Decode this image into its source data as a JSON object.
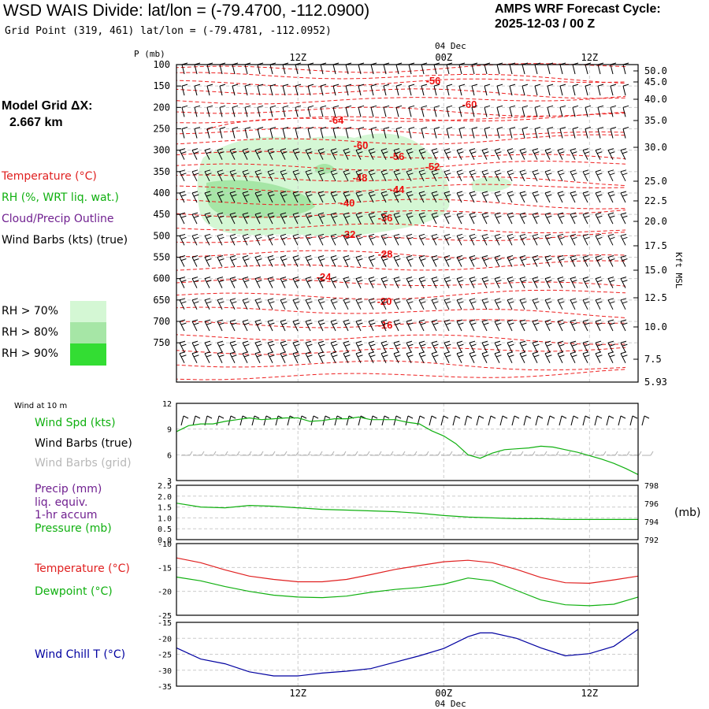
{
  "header": {
    "title": "WSD WAIS Divide:  lat/lon = (-79.4700, -112.0900)",
    "subtitle": "Grid Point (319, 461) lat/lon = (-79.4781, -112.0952)",
    "cycle_line1": "AMPS WRF Forecast Cycle:",
    "cycle_line2": "2025-12-03 / 00  Z"
  },
  "left_legend": {
    "model_grid_label": "Model Grid ΔX:",
    "model_grid_value": "2.667 km",
    "temperature": "Temperature (°C)",
    "rh": "RH (%, WRT liq. wat.)",
    "cloud": "Cloud/Precip Outline",
    "wind": "Wind Barbs (kts) (true)",
    "rh70": "RH > 70%",
    "rh80": "RH > 80%",
    "rh90": "RH > 90%",
    "wind10m": "Wind at 10 m",
    "windspd": "Wind Spd (kts)",
    "windbarbs_true": "Wind Barbs (true)",
    "windbarbs_grid": "Wind Barbs (grid)",
    "precip": "Precip (mm)",
    "liq": "liq. equiv.",
    "accum": "1-hr accum",
    "pressure": "Pressure (mb)",
    "temp2": "Temperature (°C)",
    "dewpoint": "Dewpoint (°C)",
    "windchill": "Wind Chill T (°C)"
  },
  "axis_labels": {
    "p_mb": "P (mb)",
    "kft_msl": "Kft MSL",
    "mb_right": "(mb)",
    "date_top": "04 Dec",
    "date_bottom": "04 Dec"
  },
  "colors": {
    "temperature": "#ff0000",
    "rh_green": "#00c000",
    "cloud": "#702090",
    "wind_chill": "#0000a0",
    "grid_barbs": "#b0b0b0",
    "rh70": "#d4f7d4",
    "rh80": "#a6e6a6",
    "rh90": "#33dd33"
  },
  "chart_data": [
    {
      "type": "line",
      "panel": "cross-section",
      "title": "",
      "ylabel": "P (mb)",
      "y_ticks": [
        100,
        150,
        200,
        250,
        300,
        350,
        400,
        450,
        500,
        550,
        600,
        650,
        700,
        750
      ],
      "right_axis_label": "Kft MSL",
      "right_ticks": [
        "50.0",
        "45.0",
        "40.0",
        "35.0",
        "30.0",
        "25.0",
        "22.5",
        "20.0",
        "17.5",
        "15.0",
        "12.5",
        "10.0",
        "7.5",
        "5.93"
      ],
      "x_ticks_top": [
        "12Z",
        "00Z",
        "12Z"
      ],
      "x_date": "04 Dec",
      "temperature_contour_labels": [
        "-56",
        "-60",
        "-64",
        "-60",
        "-56",
        "-52",
        "-48",
        "-44",
        "-40",
        "-36",
        "-32",
        "-28",
        "-24",
        "-20",
        "-16"
      ],
      "rh_legend": [
        "RH > 70%",
        "RH > 80%",
        "RH > 90%"
      ]
    },
    {
      "type": "line",
      "panel": "wind-10m",
      "title": "Wind at 10 m",
      "ylim": [
        3,
        12
      ],
      "y_ticks": [
        "12",
        "9",
        "6",
        "3"
      ],
      "series": [
        {
          "name": "Wind Spd (kts)",
          "x": [
            0,
            1,
            2,
            3,
            4,
            5,
            6,
            7,
            8,
            9,
            10,
            11,
            12,
            13,
            14,
            15,
            16,
            17,
            18,
            19,
            20,
            21,
            22,
            23,
            24,
            25,
            26,
            27,
            28,
            29,
            30,
            31,
            32,
            33,
            34,
            35,
            36,
            37,
            38
          ],
          "values": [
            8.7,
            9.4,
            9.6,
            9.6,
            9.9,
            10.1,
            10.3,
            10.1,
            10.2,
            10.3,
            10.3,
            9.9,
            10.0,
            10.2,
            10.2,
            10.4,
            10.1,
            10.1,
            10.1,
            9.8,
            9.6,
            8.8,
            8.2,
            7.3,
            6.0,
            5.6,
            6.2,
            6.6,
            6.7,
            6.8,
            7.0,
            6.9,
            6.6,
            6.3,
            5.9,
            5.5,
            5.0,
            4.4,
            3.7
          ]
        }
      ]
    },
    {
      "type": "line",
      "panel": "precip-pressure",
      "left_ticks": [
        "2.5",
        "2.0",
        "1.5",
        "1.0",
        "0.5",
        "0.0"
      ],
      "right_ticks": [
        "798",
        "796",
        "794",
        "792"
      ],
      "series": [
        {
          "name": "Pressure (mb)",
          "x": [
            0,
            2,
            4,
            6,
            8,
            10,
            12,
            14,
            16,
            18,
            20,
            22,
            24,
            26,
            28,
            30,
            32,
            34,
            36,
            38
          ],
          "values": [
            796.2,
            795.7,
            795.6,
            795.9,
            795.8,
            795.6,
            795.4,
            795.3,
            795.2,
            795.1,
            794.9,
            794.6,
            794.4,
            794.3,
            794.2,
            794.2,
            794.1,
            794.1,
            794.1,
            794.1
          ]
        }
      ]
    },
    {
      "type": "line",
      "panel": "temperature-dewpoint",
      "ylim": [
        -25,
        -10
      ],
      "y_ticks": [
        "-10",
        "-15",
        "-20",
        "-25"
      ],
      "series": [
        {
          "name": "Temperature (°C)",
          "x": [
            0,
            2,
            4,
            6,
            8,
            10,
            12,
            14,
            16,
            18,
            20,
            22,
            24,
            26,
            28,
            30,
            32,
            34,
            36,
            38
          ],
          "values": [
            -13.0,
            -14.0,
            -15.5,
            -16.8,
            -17.5,
            -18.0,
            -18.0,
            -17.5,
            -16.5,
            -15.4,
            -14.6,
            -13.8,
            -13.5,
            -14.0,
            -15.4,
            -17.1,
            -18.2,
            -18.3,
            -17.6,
            -16.8
          ]
        },
        {
          "name": "Dewpoint (°C)",
          "x": [
            0,
            2,
            4,
            6,
            8,
            10,
            12,
            14,
            16,
            18,
            20,
            22,
            24,
            26,
            28,
            30,
            32,
            34,
            36,
            38
          ],
          "values": [
            -17.0,
            -17.8,
            -19.0,
            -20.0,
            -20.8,
            -21.2,
            -21.3,
            -21.0,
            -20.2,
            -19.6,
            -19.2,
            -18.5,
            -17.2,
            -17.8,
            -19.8,
            -21.8,
            -22.8,
            -23.0,
            -22.7,
            -21.2
          ]
        }
      ]
    },
    {
      "type": "line",
      "panel": "wind-chill",
      "ylim": [
        -35,
        -15
      ],
      "y_ticks": [
        "-15",
        "-20",
        "-25",
        "-30",
        "-35"
      ],
      "x_ticks": [
        "12Z",
        "00Z",
        "12Z"
      ],
      "x_date": "04 Dec",
      "series": [
        {
          "name": "Wind Chill T (°C)",
          "x": [
            0,
            2,
            4,
            6,
            8,
            10,
            12,
            14,
            16,
            18,
            20,
            22,
            24,
            25,
            26,
            28,
            30,
            32,
            34,
            36,
            38
          ],
          "values": [
            -23.0,
            -26.5,
            -28.0,
            -30.5,
            -31.8,
            -31.8,
            -30.9,
            -30.3,
            -29.5,
            -27.5,
            -25.5,
            -23.2,
            -19.5,
            -18.3,
            -18.3,
            -20.0,
            -23.0,
            -25.5,
            -24.8,
            -22.5,
            -17.2
          ]
        }
      ]
    }
  ]
}
